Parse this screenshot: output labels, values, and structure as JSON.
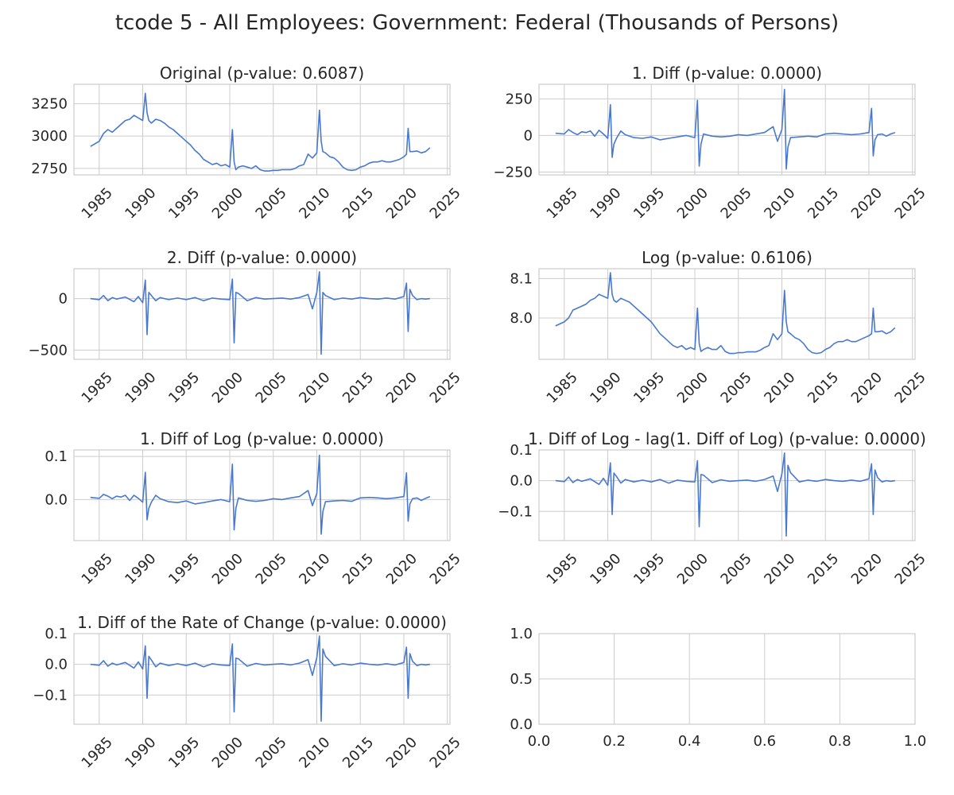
{
  "figure": {
    "title": "tcode 5 - All Employees: Government: Federal (Thousands of Persons)",
    "line_color": "#4878d0",
    "grid_color": "#cccccc",
    "frame_color": "#cccccc"
  },
  "chart_data": [
    {
      "type": "line",
      "title": "Original (p-value: 0.6087)",
      "xlim": [
        1982.1,
        2025.3
      ],
      "ylim": [
        2700,
        3400
      ],
      "xticks": [
        "1985",
        "1990",
        "1995",
        "2000",
        "2005",
        "2010",
        "2015",
        "2020",
        "2025"
      ],
      "yticks": [
        "2750",
        "3000",
        "3250"
      ],
      "x": [
        1984.0,
        1985.0,
        1985.5,
        1986.0,
        1986.5,
        1987.0,
        1987.5,
        1988.0,
        1988.5,
        1989.0,
        1989.5,
        1990.0,
        1990.3,
        1990.5,
        1990.7,
        1991.0,
        1991.5,
        1992.0,
        1992.5,
        1993.0,
        1993.5,
        1994.0,
        1994.5,
        1995.0,
        1995.5,
        1996.0,
        1996.5,
        1997.0,
        1997.5,
        1998.0,
        1998.5,
        1999.0,
        1999.5,
        2000.0,
        2000.3,
        2000.5,
        2000.7,
        2001.0,
        2001.5,
        2002.0,
        2002.5,
        2003.0,
        2003.5,
        2004.0,
        2004.5,
        2005.0,
        2005.5,
        2006.0,
        2006.5,
        2007.0,
        2007.5,
        2008.0,
        2008.5,
        2009.0,
        2009.5,
        2010.0,
        2010.3,
        2010.5,
        2010.7,
        2011.0,
        2011.5,
        2012.0,
        2012.5,
        2013.0,
        2013.5,
        2014.0,
        2014.5,
        2015.0,
        2015.5,
        2016.0,
        2016.5,
        2017.0,
        2017.5,
        2018.0,
        2018.5,
        2019.0,
        2019.5,
        2020.0,
        2020.3,
        2020.5,
        2020.7,
        2021.0,
        2021.5,
        2022.0,
        2022.5,
        2023.0
      ],
      "y": [
        2920,
        2960,
        3020,
        3050,
        3030,
        3060,
        3090,
        3120,
        3130,
        3160,
        3140,
        3120,
        3330,
        3180,
        3120,
        3100,
        3130,
        3120,
        3100,
        3070,
        3050,
        3020,
        2990,
        2960,
        2930,
        2890,
        2860,
        2820,
        2800,
        2780,
        2790,
        2770,
        2780,
        2760,
        3050,
        2800,
        2740,
        2760,
        2770,
        2760,
        2750,
        2770,
        2740,
        2730,
        2730,
        2735,
        2735,
        2740,
        2740,
        2740,
        2750,
        2770,
        2780,
        2860,
        2830,
        2870,
        3200,
        2960,
        2880,
        2870,
        2840,
        2830,
        2800,
        2760,
        2740,
        2735,
        2740,
        2760,
        2770,
        2790,
        2800,
        2800,
        2810,
        2800,
        2800,
        2810,
        2820,
        2840,
        2860,
        3060,
        2880,
        2880,
        2885,
        2870,
        2880,
        2910
      ]
    },
    {
      "type": "line",
      "title": "1. Diff (p-value: 0.0000)",
      "xlim": [
        1982.1,
        2025.3
      ],
      "ylim": [
        -270,
        350
      ],
      "xticks": [
        "1985",
        "1990",
        "1995",
        "2000",
        "2005",
        "2010",
        "2015",
        "2020",
        "2025"
      ],
      "yticks": [
        "−250",
        "0",
        "250"
      ],
      "x": [
        1984.0,
        1985.0,
        1985.5,
        1986.0,
        1986.5,
        1987.0,
        1987.5,
        1988.0,
        1988.5,
        1989.0,
        1989.5,
        1990.0,
        1990.3,
        1990.5,
        1990.7,
        1991.0,
        1991.5,
        1992.0,
        1993.0,
        1994.0,
        1995.0,
        1996.0,
        1997.0,
        1998.0,
        1999.0,
        2000.0,
        2000.3,
        2000.5,
        2000.7,
        2001.0,
        2002.0,
        2003.0,
        2004.0,
        2005.0,
        2006.0,
        2007.0,
        2008.0,
        2009.0,
        2009.5,
        2010.0,
        2010.3,
        2010.5,
        2010.7,
        2011.0,
        2012.0,
        2013.0,
        2014.0,
        2015.0,
        2016.0,
        2017.0,
        2018.0,
        2019.0,
        2020.0,
        2020.3,
        2020.5,
        2020.7,
        2021.0,
        2021.5,
        2022.0,
        2022.5,
        2023.0
      ],
      "y": [
        15,
        10,
        40,
        20,
        5,
        25,
        20,
        30,
        -5,
        35,
        10,
        -20,
        210,
        -150,
        -60,
        -20,
        30,
        5,
        -15,
        -20,
        -10,
        -30,
        -20,
        -10,
        0,
        -15,
        240,
        -210,
        -60,
        10,
        -5,
        -10,
        -5,
        5,
        0,
        10,
        20,
        60,
        -40,
        40,
        315,
        -230,
        -80,
        -15,
        -10,
        -5,
        -10,
        10,
        15,
        10,
        5,
        10,
        20,
        185,
        -140,
        -30,
        5,
        10,
        -5,
        10,
        20
      ]
    },
    {
      "type": "line",
      "title": "2. Diff (p-value: 0.0000)",
      "xlim": [
        1982.1,
        2025.3
      ],
      "ylim": [
        -590,
        290
      ],
      "xticks": [
        "1985",
        "1990",
        "1995",
        "2000",
        "2005",
        "2010",
        "2015",
        "2020",
        "2025"
      ],
      "yticks": [
        "−500",
        "0"
      ],
      "x": [
        1984.0,
        1985.0,
        1985.5,
        1986.0,
        1986.5,
        1987.0,
        1988.0,
        1989.0,
        1989.5,
        1990.0,
        1990.3,
        1990.5,
        1990.7,
        1991.0,
        1991.5,
        1992.0,
        1993.0,
        1994.0,
        1995.0,
        1996.0,
        1997.0,
        1998.0,
        1999.0,
        2000.0,
        2000.3,
        2000.5,
        2000.7,
        2001.0,
        2002.0,
        2003.0,
        2004.0,
        2005.0,
        2006.0,
        2007.0,
        2008.0,
        2009.0,
        2009.5,
        2010.0,
        2010.3,
        2010.5,
        2010.7,
        2011.0,
        2012.0,
        2013.0,
        2014.0,
        2015.0,
        2016.0,
        2017.0,
        2018.0,
        2019.0,
        2020.0,
        2020.3,
        2020.5,
        2020.7,
        2021.0,
        2021.5,
        2022.0,
        2022.5,
        2023.0
      ],
      "y": [
        0,
        -10,
        30,
        -20,
        10,
        -5,
        15,
        -30,
        20,
        -40,
        180,
        -350,
        60,
        30,
        -20,
        10,
        -10,
        5,
        -10,
        10,
        -20,
        5,
        -5,
        -10,
        190,
        -430,
        60,
        50,
        -20,
        10,
        -5,
        0,
        5,
        -5,
        10,
        40,
        -100,
        60,
        260,
        -540,
        60,
        30,
        -10,
        5,
        -5,
        10,
        0,
        -5,
        5,
        -5,
        20,
        150,
        -320,
        90,
        30,
        -10,
        0,
        -5,
        0
      ]
    },
    {
      "type": "line",
      "title": "Log (p-value: 0.6106)",
      "xlim": [
        1982.1,
        2025.3
      ],
      "ylim": [
        7.895,
        8.125
      ],
      "xticks": [
        "1985",
        "1990",
        "1995",
        "2000",
        "2005",
        "2010",
        "2015",
        "2020",
        "2025"
      ],
      "yticks": [
        "8.0",
        "8.1"
      ],
      "x": [
        1984.0,
        1985.0,
        1985.5,
        1986.0,
        1986.5,
        1987.0,
        1987.5,
        1988.0,
        1988.5,
        1989.0,
        1989.5,
        1990.0,
        1990.3,
        1990.5,
        1990.7,
        1991.0,
        1991.5,
        1992.0,
        1992.5,
        1993.0,
        1993.5,
        1994.0,
        1994.5,
        1995.0,
        1995.5,
        1996.0,
        1996.5,
        1997.0,
        1997.5,
        1998.0,
        1998.5,
        1999.0,
        1999.5,
        2000.0,
        2000.3,
        2000.5,
        2000.7,
        2001.0,
        2001.5,
        2002.0,
        2002.5,
        2003.0,
        2003.5,
        2004.0,
        2004.5,
        2005.0,
        2005.5,
        2006.0,
        2006.5,
        2007.0,
        2007.5,
        2008.0,
        2008.5,
        2009.0,
        2009.5,
        2010.0,
        2010.3,
        2010.5,
        2010.7,
        2011.0,
        2011.5,
        2012.0,
        2012.5,
        2013.0,
        2013.5,
        2014.0,
        2014.5,
        2015.0,
        2015.5,
        2016.0,
        2016.5,
        2017.0,
        2017.5,
        2018.0,
        2018.5,
        2019.0,
        2019.5,
        2020.0,
        2020.3,
        2020.5,
        2020.7,
        2021.0,
        2021.5,
        2022.0,
        2022.5,
        2023.0
      ],
      "y": [
        7.98,
        7.99,
        8.0,
        8.02,
        8.025,
        8.03,
        8.035,
        8.045,
        8.05,
        8.06,
        8.055,
        8.05,
        8.115,
        8.06,
        8.045,
        8.04,
        8.05,
        8.045,
        8.04,
        8.03,
        8.02,
        8.01,
        8.0,
        7.99,
        7.975,
        7.96,
        7.95,
        7.94,
        7.93,
        7.925,
        7.93,
        7.92,
        7.925,
        7.92,
        8.025,
        7.935,
        7.915,
        7.92,
        7.925,
        7.92,
        7.92,
        7.93,
        7.915,
        7.91,
        7.91,
        7.912,
        7.912,
        7.914,
        7.914,
        7.914,
        7.918,
        7.925,
        7.93,
        7.96,
        7.945,
        7.96,
        8.07,
        7.99,
        7.965,
        7.96,
        7.95,
        7.945,
        7.935,
        7.92,
        7.912,
        7.91,
        7.912,
        7.92,
        7.925,
        7.935,
        7.94,
        7.94,
        7.945,
        7.94,
        7.94,
        7.945,
        7.95,
        7.955,
        7.96,
        8.025,
        7.965,
        7.965,
        7.967,
        7.96,
        7.965,
        7.975
      ]
    },
    {
      "type": "line",
      "title": "1. Diff of Log (p-value: 0.0000)",
      "xlim": [
        1982.1,
        2025.3
      ],
      "ylim": [
        -0.095,
        0.115
      ],
      "xticks": [
        "1985",
        "1990",
        "1995",
        "2000",
        "2005",
        "2010",
        "2015",
        "2020",
        "2025"
      ],
      "yticks": [
        "0.0",
        "0.1"
      ],
      "x": [
        1984.0,
        1985.0,
        1985.5,
        1986.0,
        1986.5,
        1987.0,
        1987.5,
        1988.0,
        1988.5,
        1989.0,
        1989.5,
        1990.0,
        1990.3,
        1990.5,
        1990.7,
        1991.0,
        1991.5,
        1992.0,
        1993.0,
        1994.0,
        1995.0,
        1996.0,
        1997.0,
        1998.0,
        1999.0,
        2000.0,
        2000.3,
        2000.5,
        2000.7,
        2001.0,
        2002.0,
        2003.0,
        2004.0,
        2005.0,
        2006.0,
        2007.0,
        2008.0,
        2009.0,
        2009.5,
        2010.0,
        2010.3,
        2010.5,
        2010.7,
        2011.0,
        2012.0,
        2013.0,
        2014.0,
        2015.0,
        2016.0,
        2017.0,
        2018.0,
        2019.0,
        2020.0,
        2020.3,
        2020.5,
        2020.7,
        2021.0,
        2021.5,
        2022.0,
        2022.5,
        2023.0
      ],
      "y": [
        0.005,
        0.003,
        0.012,
        0.008,
        0.002,
        0.008,
        0.006,
        0.01,
        -0.002,
        0.01,
        0.003,
        -0.006,
        0.063,
        -0.047,
        -0.02,
        -0.006,
        0.01,
        0.002,
        -0.005,
        -0.007,
        -0.003,
        -0.01,
        -0.007,
        -0.003,
        0.0,
        -0.005,
        0.082,
        -0.07,
        -0.02,
        0.004,
        -0.002,
        -0.004,
        -0.002,
        0.002,
        0.0,
        0.004,
        0.007,
        0.021,
        -0.014,
        0.014,
        0.103,
        -0.08,
        -0.028,
        -0.005,
        -0.003,
        -0.002,
        -0.004,
        0.004,
        0.005,
        0.004,
        0.002,
        0.004,
        0.007,
        0.062,
        -0.05,
        -0.01,
        0.002,
        0.004,
        -0.002,
        0.003,
        0.007
      ]
    },
    {
      "type": "line",
      "title": "1. Diff of Log - lag(1. Diff of Log) (p-value: 0.0000)",
      "xlim": [
        1982.1,
        2025.3
      ],
      "ylim": [
        -0.195,
        0.1
      ],
      "xticks": [
        "1985",
        "1990",
        "1995",
        "2000",
        "2005",
        "2010",
        "2015",
        "2020",
        "2025"
      ],
      "yticks": [
        "−0.1",
        "0.0",
        "0.1"
      ],
      "x": [
        1984.0,
        1985.0,
        1985.5,
        1986.0,
        1986.5,
        1987.0,
        1988.0,
        1989.0,
        1989.5,
        1990.0,
        1990.3,
        1990.5,
        1990.7,
        1991.0,
        1991.5,
        1992.0,
        1993.0,
        1994.0,
        1995.0,
        1996.0,
        1997.0,
        1998.0,
        1999.0,
        2000.0,
        2000.3,
        2000.5,
        2000.7,
        2001.0,
        2002.0,
        2003.0,
        2004.0,
        2005.0,
        2006.0,
        2007.0,
        2008.0,
        2009.0,
        2009.5,
        2010.0,
        2010.3,
        2010.5,
        2010.7,
        2011.0,
        2012.0,
        2013.0,
        2014.0,
        2015.0,
        2016.0,
        2017.0,
        2018.0,
        2019.0,
        2020.0,
        2020.3,
        2020.5,
        2020.7,
        2021.0,
        2021.5,
        2022.0,
        2022.5,
        2023.0
      ],
      "y": [
        0.0,
        -0.003,
        0.012,
        -0.006,
        0.004,
        -0.002,
        0.006,
        -0.012,
        0.008,
        -0.015,
        0.058,
        -0.11,
        0.025,
        0.014,
        -0.008,
        0.004,
        -0.004,
        0.002,
        -0.004,
        0.004,
        -0.008,
        0.002,
        -0.002,
        -0.004,
        0.065,
        -0.15,
        0.02,
        0.018,
        -0.006,
        0.003,
        -0.002,
        0.0,
        0.002,
        -0.002,
        0.004,
        0.015,
        -0.035,
        0.022,
        0.09,
        -0.18,
        0.05,
        0.026,
        -0.004,
        0.002,
        -0.002,
        0.004,
        0.0,
        -0.002,
        0.002,
        -0.002,
        0.006,
        0.055,
        -0.11,
        0.035,
        0.01,
        -0.004,
        0.0,
        -0.002,
        0.0
      ]
    },
    {
      "type": "line",
      "title": "1. Diff of the Rate of Change (p-value: 0.0000)",
      "xlim": [
        1982.1,
        2025.3
      ],
      "ylim": [
        -0.195,
        0.1
      ],
      "xticks": [
        "1985",
        "1990",
        "1995",
        "2000",
        "2005",
        "2010",
        "2015",
        "2020",
        "2025"
      ],
      "yticks": [
        "−0.1",
        "0.0",
        "0.1"
      ],
      "x": [
        1984.0,
        1985.0,
        1985.5,
        1986.0,
        1986.5,
        1987.0,
        1988.0,
        1989.0,
        1989.5,
        1990.0,
        1990.3,
        1990.5,
        1990.7,
        1991.0,
        1991.5,
        1992.0,
        1993.0,
        1994.0,
        1995.0,
        1996.0,
        1997.0,
        1998.0,
        1999.0,
        2000.0,
        2000.3,
        2000.5,
        2000.7,
        2001.0,
        2002.0,
        2003.0,
        2004.0,
        2005.0,
        2006.0,
        2007.0,
        2008.0,
        2009.0,
        2009.5,
        2010.0,
        2010.3,
        2010.5,
        2010.7,
        2011.0,
        2012.0,
        2013.0,
        2014.0,
        2015.0,
        2016.0,
        2017.0,
        2018.0,
        2019.0,
        2020.0,
        2020.3,
        2020.5,
        2020.7,
        2021.0,
        2021.5,
        2022.0,
        2022.5,
        2023.0
      ],
      "y": [
        0.0,
        -0.003,
        0.012,
        -0.006,
        0.004,
        -0.002,
        0.006,
        -0.012,
        0.008,
        -0.015,
        0.06,
        -0.11,
        0.026,
        0.014,
        -0.008,
        0.004,
        -0.004,
        0.002,
        -0.004,
        0.004,
        -0.008,
        0.002,
        -0.002,
        -0.004,
        0.066,
        -0.155,
        0.02,
        0.018,
        -0.006,
        0.003,
        -0.002,
        0.0,
        0.002,
        -0.002,
        0.004,
        0.015,
        -0.036,
        0.022,
        0.092,
        -0.185,
        0.05,
        0.026,
        -0.004,
        0.002,
        -0.002,
        0.004,
        0.0,
        -0.002,
        0.002,
        -0.002,
        0.006,
        0.056,
        -0.11,
        0.035,
        0.01,
        -0.004,
        0.0,
        -0.002,
        0.0
      ]
    },
    {
      "type": "line",
      "title": "",
      "xlim": [
        0.0,
        1.0
      ],
      "ylim": [
        0.0,
        1.0
      ],
      "xticks": [
        "0.0",
        "0.2",
        "0.4",
        "0.6",
        "0.8",
        "1.0"
      ],
      "yticks": [
        "0.0",
        "0.5",
        "1.0"
      ],
      "x": [],
      "y": []
    }
  ]
}
